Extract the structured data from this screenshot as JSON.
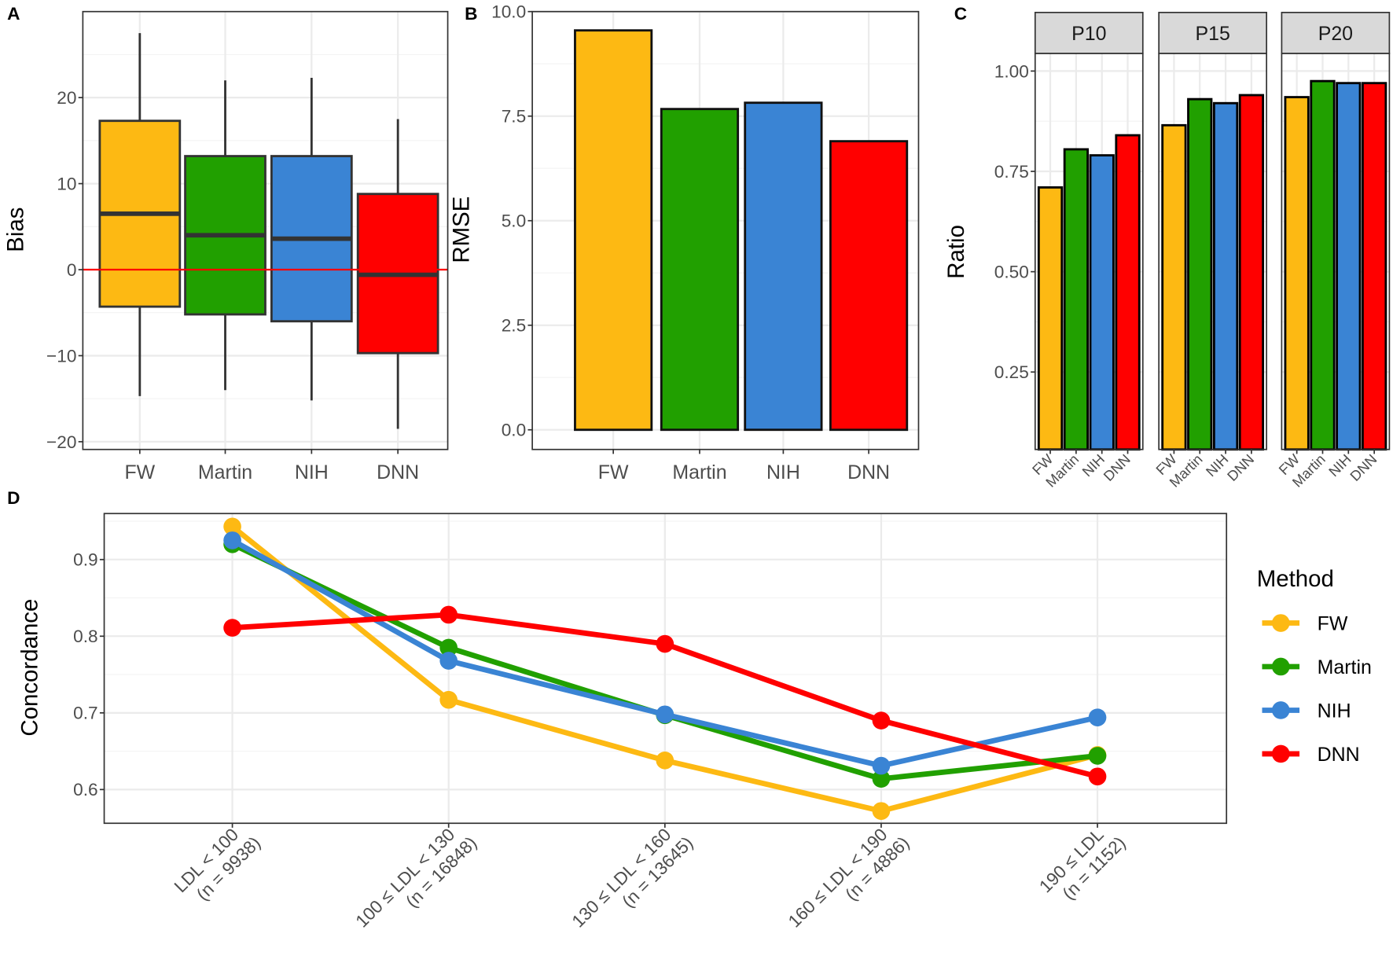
{
  "colors": {
    "FW": "#FDB913",
    "Martin": "#21A000",
    "NIH": "#3A84D4",
    "DNN": "#FF0000"
  },
  "chart_data": [
    {
      "panel": "A",
      "type": "boxplot",
      "categories": [
        "FW",
        "Martin",
        "NIH",
        "DNN"
      ],
      "xlabel": "",
      "ylabel": "Bias",
      "ylim": [
        -20.9,
        30
      ],
      "yticks": [
        -20,
        -10,
        0,
        10,
        20
      ],
      "yticklabels": [
        "−20",
        "−10",
        "0",
        "10",
        "20"
      ],
      "reference_line": 0,
      "boxes": [
        {
          "min": -14.7,
          "q1": -4.3,
          "median": 6.5,
          "q3": 17.3,
          "max": 27.5
        },
        {
          "min": -14.0,
          "q1": -5.2,
          "median": 4.0,
          "q3": 13.2,
          "max": 22.0
        },
        {
          "min": -15.2,
          "q1": -6.0,
          "median": 3.6,
          "q3": 13.2,
          "max": 22.3
        },
        {
          "min": -18.5,
          "q1": -9.7,
          "median": -0.6,
          "q3": 8.8,
          "max": 17.5
        }
      ]
    },
    {
      "panel": "B",
      "type": "bar",
      "categories": [
        "FW",
        "Martin",
        "NIH",
        "DNN"
      ],
      "values": [
        9.55,
        7.67,
        7.82,
        6.9
      ],
      "xlabel": "",
      "ylabel": "RMSE",
      "ylim": [
        -0.47,
        10
      ],
      "yticks": [
        0,
        2.5,
        5,
        7.5,
        10
      ],
      "yticklabels": [
        "0.0",
        "2.5",
        "5.0",
        "7.5",
        "10.0"
      ]
    },
    {
      "panel": "C",
      "type": "bar",
      "categories": [
        "FW",
        "Martin",
        "NIH",
        "DNN"
      ],
      "facets": [
        {
          "label": "P10",
          "values": [
            0.71,
            0.805,
            0.79,
            0.84
          ]
        },
        {
          "label": "P15",
          "values": [
            0.865,
            0.93,
            0.92,
            0.94
          ]
        },
        {
          "label": "P20",
          "values": [
            0.935,
            0.975,
            0.97,
            0.97
          ]
        }
      ],
      "xlabel": "",
      "ylabel": "Ratio",
      "ylim": [
        0.057,
        1.044
      ],
      "yticks": [
        0.25,
        0.5,
        0.75,
        1.0
      ],
      "yticklabels": [
        "0.25",
        "0.50",
        "0.75",
        "1.00"
      ]
    },
    {
      "panel": "D",
      "type": "line",
      "categories": [
        [
          "LDL < 100",
          "(n = 9938)"
        ],
        [
          "100 ≤ LDL < 130",
          "(n = 16848)"
        ],
        [
          "130 ≤ LDL < 160",
          "(n = 13645)"
        ],
        [
          "160 ≤ LDL < 190",
          "(n = 4886)"
        ],
        [
          "190 ≤ LDL",
          "(n = 1152)"
        ]
      ],
      "series": [
        {
          "name": "FW",
          "values": [
            0.943,
            0.717,
            0.638,
            0.572,
            0.645
          ]
        },
        {
          "name": "Martin",
          "values": [
            0.92,
            0.785,
            0.697,
            0.614,
            0.644
          ]
        },
        {
          "name": "NIH",
          "values": [
            0.925,
            0.768,
            0.698,
            0.631,
            0.694
          ]
        },
        {
          "name": "DNN",
          "values": [
            0.811,
            0.828,
            0.79,
            0.69,
            0.617
          ]
        }
      ],
      "xlabel": "",
      "ylabel": "Concordance",
      "ylim": [
        0.556,
        0.96
      ],
      "yticks": [
        0.6,
        0.7,
        0.8,
        0.9
      ],
      "yticklabels": [
        "0.6",
        "0.7",
        "0.8",
        "0.9"
      ],
      "legend": {
        "title": "Method",
        "position": "right",
        "items": [
          "FW",
          "Martin",
          "NIH",
          "DNN"
        ]
      }
    }
  ]
}
